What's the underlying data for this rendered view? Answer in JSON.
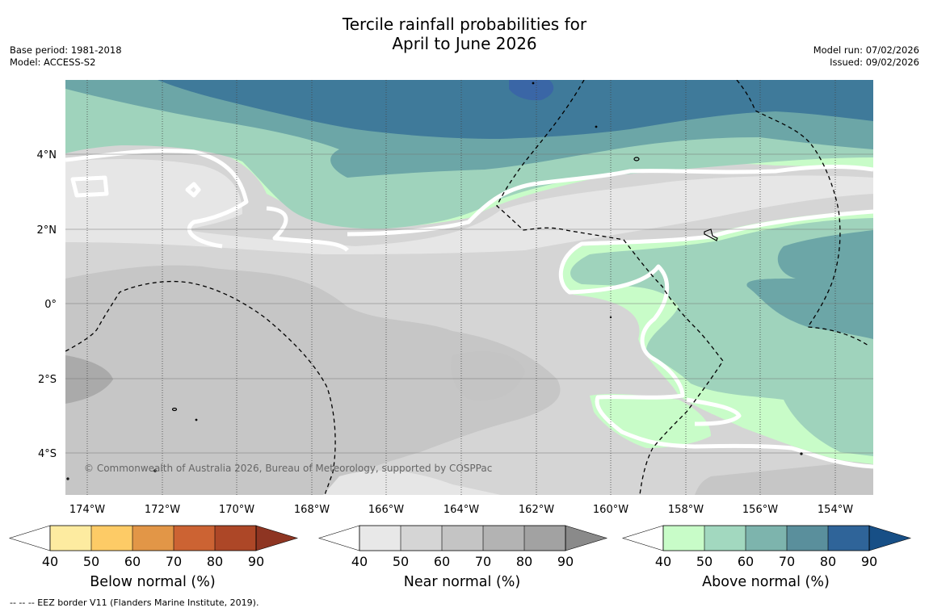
{
  "title": {
    "line1": "Tercile rainfall probabilities for",
    "line2": "April to June 2026"
  },
  "meta": {
    "base_period": "Base period: 1981-2018",
    "model": "Model: ACCESS-S2",
    "model_run": "Model run: 07/02/2026",
    "issued": "Issued: 09/02/2026"
  },
  "map": {
    "copyright": "© Commonwealth of Australia 2026, Bureau of Meteorology, supported by COSPPac",
    "lat_labels": [
      "4°N",
      "2°N",
      "0°",
      "2°S",
      "4°S"
    ],
    "lon_labels": [
      "174°W",
      "172°W",
      "170°W",
      "168°W",
      "166°W",
      "164°W",
      "162°W",
      "160°W",
      "158°W",
      "156°W",
      "154°W"
    ],
    "colors": {
      "ocean_gray_base": "#d5d5d5",
      "above_40": "#c8fcc8",
      "above_50": "#9fd3bc",
      "above_60": "#6ca6a7",
      "above_70": "#3f7a9a",
      "above_80": "#3a66a6"
    }
  },
  "colorbars": [
    {
      "id": "below",
      "title": "Below normal (%)",
      "ticks": [
        "40",
        "50",
        "60",
        "70",
        "80",
        "90"
      ],
      "low_color": "#ffffff",
      "colors": [
        "#fdeba0",
        "#fdcb66",
        "#e29647",
        "#cc6333",
        "#ad4727"
      ],
      "high_color": "#8e3522"
    },
    {
      "id": "near",
      "title": "Near normal (%)",
      "ticks": [
        "40",
        "50",
        "60",
        "70",
        "80",
        "90"
      ],
      "low_color": "#ffffff",
      "colors": [
        "#e8e8e8",
        "#d5d5d5",
        "#c4c4c4",
        "#b3b3b3",
        "#a2a2a2"
      ],
      "high_color": "#8a8a8a"
    },
    {
      "id": "above",
      "title": "Above normal (%)",
      "ticks": [
        "40",
        "50",
        "60",
        "70",
        "80",
        "90"
      ],
      "low_color": "#ffffff",
      "colors": [
        "#c8fcc8",
        "#a2d8bf",
        "#7db4ad",
        "#5a8f9c",
        "#2f6499"
      ],
      "high_color": "#174f86"
    }
  ],
  "footer": "--  --  -- EEZ border V11 (Flanders Marine Institute, 2019)."
}
